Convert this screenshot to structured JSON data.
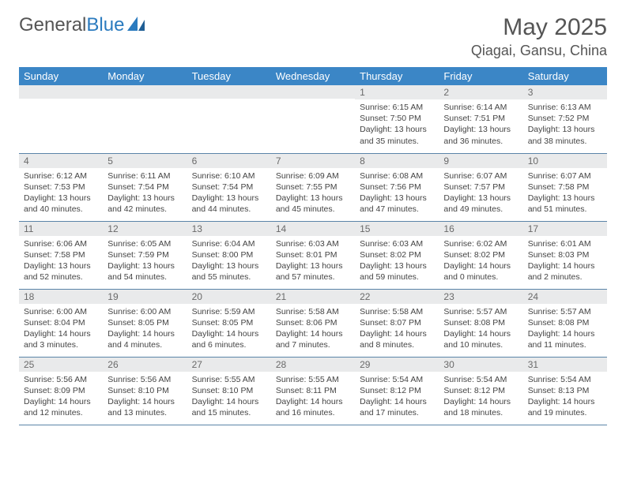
{
  "brand": {
    "part1": "General",
    "part2": "Blue"
  },
  "title": "May 2025",
  "location": "Qiagai, Gansu, China",
  "colors": {
    "header_bg": "#3b86c6",
    "header_text": "#ffffff",
    "daynum_bg": "#e9eaeb",
    "daynum_text": "#6a6a6a",
    "border": "#5a84a8",
    "body_text": "#444444",
    "title_text": "#555555",
    "brand_blue": "#2b7bbf"
  },
  "typography": {
    "month_title_fontsize": 30,
    "location_fontsize": 18,
    "dayheader_fontsize": 13,
    "daynum_fontsize": 12,
    "cell_fontsize": 10.5
  },
  "calendar": {
    "days_of_week": [
      "Sunday",
      "Monday",
      "Tuesday",
      "Wednesday",
      "Thursday",
      "Friday",
      "Saturday"
    ],
    "weeks": [
      [
        {
          "n": "",
          "sr": "",
          "ss": "",
          "dl": ""
        },
        {
          "n": "",
          "sr": "",
          "ss": "",
          "dl": ""
        },
        {
          "n": "",
          "sr": "",
          "ss": "",
          "dl": ""
        },
        {
          "n": "",
          "sr": "",
          "ss": "",
          "dl": ""
        },
        {
          "n": "1",
          "sr": "Sunrise: 6:15 AM",
          "ss": "Sunset: 7:50 PM",
          "dl": "Daylight: 13 hours and 35 minutes."
        },
        {
          "n": "2",
          "sr": "Sunrise: 6:14 AM",
          "ss": "Sunset: 7:51 PM",
          "dl": "Daylight: 13 hours and 36 minutes."
        },
        {
          "n": "3",
          "sr": "Sunrise: 6:13 AM",
          "ss": "Sunset: 7:52 PM",
          "dl": "Daylight: 13 hours and 38 minutes."
        }
      ],
      [
        {
          "n": "4",
          "sr": "Sunrise: 6:12 AM",
          "ss": "Sunset: 7:53 PM",
          "dl": "Daylight: 13 hours and 40 minutes."
        },
        {
          "n": "5",
          "sr": "Sunrise: 6:11 AM",
          "ss": "Sunset: 7:54 PM",
          "dl": "Daylight: 13 hours and 42 minutes."
        },
        {
          "n": "6",
          "sr": "Sunrise: 6:10 AM",
          "ss": "Sunset: 7:54 PM",
          "dl": "Daylight: 13 hours and 44 minutes."
        },
        {
          "n": "7",
          "sr": "Sunrise: 6:09 AM",
          "ss": "Sunset: 7:55 PM",
          "dl": "Daylight: 13 hours and 45 minutes."
        },
        {
          "n": "8",
          "sr": "Sunrise: 6:08 AM",
          "ss": "Sunset: 7:56 PM",
          "dl": "Daylight: 13 hours and 47 minutes."
        },
        {
          "n": "9",
          "sr": "Sunrise: 6:07 AM",
          "ss": "Sunset: 7:57 PM",
          "dl": "Daylight: 13 hours and 49 minutes."
        },
        {
          "n": "10",
          "sr": "Sunrise: 6:07 AM",
          "ss": "Sunset: 7:58 PM",
          "dl": "Daylight: 13 hours and 51 minutes."
        }
      ],
      [
        {
          "n": "11",
          "sr": "Sunrise: 6:06 AM",
          "ss": "Sunset: 7:58 PM",
          "dl": "Daylight: 13 hours and 52 minutes."
        },
        {
          "n": "12",
          "sr": "Sunrise: 6:05 AM",
          "ss": "Sunset: 7:59 PM",
          "dl": "Daylight: 13 hours and 54 minutes."
        },
        {
          "n": "13",
          "sr": "Sunrise: 6:04 AM",
          "ss": "Sunset: 8:00 PM",
          "dl": "Daylight: 13 hours and 55 minutes."
        },
        {
          "n": "14",
          "sr": "Sunrise: 6:03 AM",
          "ss": "Sunset: 8:01 PM",
          "dl": "Daylight: 13 hours and 57 minutes."
        },
        {
          "n": "15",
          "sr": "Sunrise: 6:03 AM",
          "ss": "Sunset: 8:02 PM",
          "dl": "Daylight: 13 hours and 59 minutes."
        },
        {
          "n": "16",
          "sr": "Sunrise: 6:02 AM",
          "ss": "Sunset: 8:02 PM",
          "dl": "Daylight: 14 hours and 0 minutes."
        },
        {
          "n": "17",
          "sr": "Sunrise: 6:01 AM",
          "ss": "Sunset: 8:03 PM",
          "dl": "Daylight: 14 hours and 2 minutes."
        }
      ],
      [
        {
          "n": "18",
          "sr": "Sunrise: 6:00 AM",
          "ss": "Sunset: 8:04 PM",
          "dl": "Daylight: 14 hours and 3 minutes."
        },
        {
          "n": "19",
          "sr": "Sunrise: 6:00 AM",
          "ss": "Sunset: 8:05 PM",
          "dl": "Daylight: 14 hours and 4 minutes."
        },
        {
          "n": "20",
          "sr": "Sunrise: 5:59 AM",
          "ss": "Sunset: 8:05 PM",
          "dl": "Daylight: 14 hours and 6 minutes."
        },
        {
          "n": "21",
          "sr": "Sunrise: 5:58 AM",
          "ss": "Sunset: 8:06 PM",
          "dl": "Daylight: 14 hours and 7 minutes."
        },
        {
          "n": "22",
          "sr": "Sunrise: 5:58 AM",
          "ss": "Sunset: 8:07 PM",
          "dl": "Daylight: 14 hours and 8 minutes."
        },
        {
          "n": "23",
          "sr": "Sunrise: 5:57 AM",
          "ss": "Sunset: 8:08 PM",
          "dl": "Daylight: 14 hours and 10 minutes."
        },
        {
          "n": "24",
          "sr": "Sunrise: 5:57 AM",
          "ss": "Sunset: 8:08 PM",
          "dl": "Daylight: 14 hours and 11 minutes."
        }
      ],
      [
        {
          "n": "25",
          "sr": "Sunrise: 5:56 AM",
          "ss": "Sunset: 8:09 PM",
          "dl": "Daylight: 14 hours and 12 minutes."
        },
        {
          "n": "26",
          "sr": "Sunrise: 5:56 AM",
          "ss": "Sunset: 8:10 PM",
          "dl": "Daylight: 14 hours and 13 minutes."
        },
        {
          "n": "27",
          "sr": "Sunrise: 5:55 AM",
          "ss": "Sunset: 8:10 PM",
          "dl": "Daylight: 14 hours and 15 minutes."
        },
        {
          "n": "28",
          "sr": "Sunrise: 5:55 AM",
          "ss": "Sunset: 8:11 PM",
          "dl": "Daylight: 14 hours and 16 minutes."
        },
        {
          "n": "29",
          "sr": "Sunrise: 5:54 AM",
          "ss": "Sunset: 8:12 PM",
          "dl": "Daylight: 14 hours and 17 minutes."
        },
        {
          "n": "30",
          "sr": "Sunrise: 5:54 AM",
          "ss": "Sunset: 8:12 PM",
          "dl": "Daylight: 14 hours and 18 minutes."
        },
        {
          "n": "31",
          "sr": "Sunrise: 5:54 AM",
          "ss": "Sunset: 8:13 PM",
          "dl": "Daylight: 14 hours and 19 minutes."
        }
      ]
    ]
  }
}
